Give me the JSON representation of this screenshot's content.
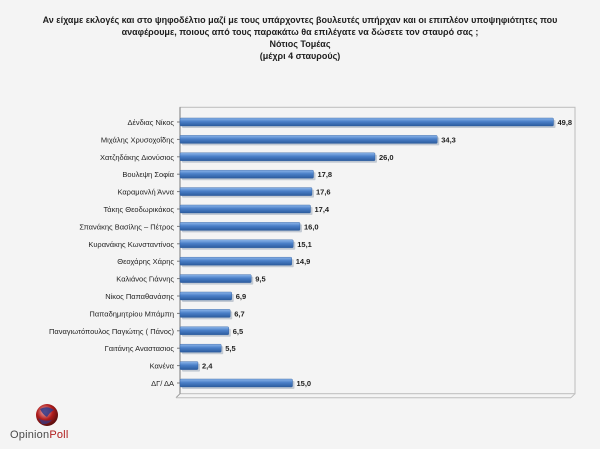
{
  "header": {
    "line1": "Αν είχαμε εκλογές και στο ψηφοδέλτιο μαζί με τους υπάρχοντες βουλευτές υπήρχαν και οι επιπλέον υποψηφιότητες που",
    "line2": "αναφέρουμε, ποιους από τους παρακάτω θα επιλέγατε να δώσετε τον σταυρό σας ;",
    "line3": "Νότιος Τομέας",
    "line4": "(μέχρι 4 σταυρούς)"
  },
  "logo": {
    "part1": "Opinion",
    "part2": "Poll",
    "icon": "globe-logo-icon"
  },
  "colors": {
    "bar": "#4a7fc8",
    "bar_light": "#8db6ea",
    "bar_dark": "#2c5c9e",
    "accent": "#b01c1c"
  },
  "chart_data": {
    "type": "bar",
    "orientation": "horizontal",
    "categories": [
      "Δένδιας Νίκος",
      "Μιχάλης Χρυσοχοΐδης",
      "Χατζηδάκης Διονύσιος",
      "Βουλεψη Σοφία",
      "Καραμανλή Άννα",
      "Τάκης Θεοδωρικάκος",
      "Σπανάκης Βασίλης – Πέτρος",
      "Κυρανάκης Κωνσταντίνος",
      "Θεοχάρης Χάρης",
      "Καλιάνος Γιάννης",
      "Νίκος Παπαθανάσης",
      "Παπαδημητρίου Μπάμπη",
      "Παναγιωτόπουλος Παγιώτης ( Πάνος)",
      "Γαιτάνης Αναστασιος",
      "Κανένα",
      "ΔΓ/ ΔΑ"
    ],
    "values": [
      49.8,
      34.3,
      26.0,
      17.8,
      17.6,
      17.4,
      16.0,
      15.1,
      14.9,
      9.5,
      6.9,
      6.7,
      6.5,
      5.5,
      2.4,
      15.0
    ],
    "value_labels": [
      "49,8",
      "34,3",
      "26,0",
      "17,8",
      "17,6",
      "17,4",
      "16,0",
      "15,1",
      "14,9",
      "9,5",
      "6,9",
      "6,7",
      "6,5",
      "5,5",
      "2,4",
      "15,0"
    ],
    "xlim": [
      0,
      50
    ],
    "grid": false
  }
}
